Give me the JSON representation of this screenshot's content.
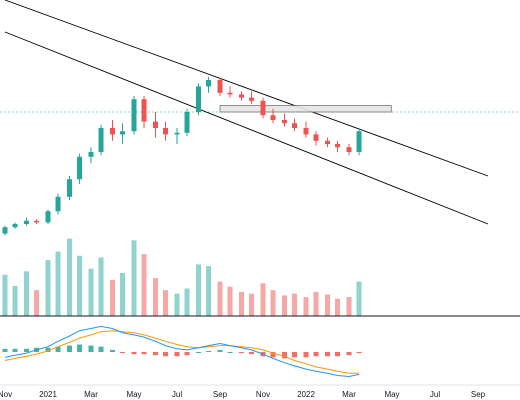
{
  "chart_data": {
    "type": "candlestick",
    "x_axis": {
      "tick_labels": [
        "Nov",
        "2021",
        "Mar",
        "May",
        "Jul",
        "Sep",
        "Nov",
        "2022",
        "Mar",
        "May",
        "Jul",
        "Sep"
      ],
      "tick_months": [
        "2020-11",
        "2021-01",
        "2021-03",
        "2021-05",
        "2021-07",
        "2021-09",
        "2021-11",
        "2022-01",
        "2022-03",
        "2022-05",
        "2022-07",
        "2022-09"
      ]
    },
    "price_panel": {
      "series": [
        {
          "date": "2020-11-01",
          "open": 4,
          "high": 9,
          "low": 3,
          "close": 8
        },
        {
          "date": "2020-11-15",
          "open": 8,
          "high": 11,
          "low": 7,
          "close": 10
        },
        {
          "date": "2020-12-01",
          "open": 10,
          "high": 14,
          "low": 9,
          "close": 12
        },
        {
          "date": "2020-12-15",
          "open": 12,
          "high": 13,
          "low": 10,
          "close": 11
        },
        {
          "date": "2021-01-01",
          "open": 11,
          "high": 19,
          "low": 10,
          "close": 18
        },
        {
          "date": "2021-01-15",
          "open": 18,
          "high": 29,
          "low": 16,
          "close": 27
        },
        {
          "date": "2021-02-01",
          "open": 27,
          "high": 40,
          "low": 25,
          "close": 38
        },
        {
          "date": "2021-02-15",
          "open": 38,
          "high": 54,
          "low": 35,
          "close": 52
        },
        {
          "date": "2021-03-01",
          "open": 52,
          "high": 58,
          "low": 48,
          "close": 55
        },
        {
          "date": "2021-03-15",
          "open": 55,
          "high": 72,
          "low": 53,
          "close": 70
        },
        {
          "date": "2021-04-01",
          "open": 70,
          "high": 75,
          "low": 62,
          "close": 66
        },
        {
          "date": "2021-04-15",
          "open": 66,
          "high": 73,
          "low": 60,
          "close": 68
        },
        {
          "date": "2021-05-01",
          "open": 68,
          "high": 90,
          "low": 66,
          "close": 88
        },
        {
          "date": "2021-05-15",
          "open": 88,
          "high": 90,
          "low": 70,
          "close": 74
        },
        {
          "date": "2021-06-01",
          "open": 74,
          "high": 80,
          "low": 64,
          "close": 70
        },
        {
          "date": "2021-06-15",
          "open": 70,
          "high": 74,
          "low": 62,
          "close": 66
        },
        {
          "date": "2021-07-01",
          "open": 66,
          "high": 70,
          "low": 60,
          "close": 67
        },
        {
          "date": "2021-07-15",
          "open": 67,
          "high": 82,
          "low": 65,
          "close": 80
        },
        {
          "date": "2021-08-01",
          "open": 80,
          "high": 98,
          "low": 78,
          "close": 96
        },
        {
          "date": "2021-08-15",
          "open": 96,
          "high": 102,
          "low": 92,
          "close": 100
        },
        {
          "date": "2021-09-01",
          "open": 100,
          "high": 101,
          "low": 90,
          "close": 92
        },
        {
          "date": "2021-09-15",
          "open": 92,
          "high": 96,
          "low": 89,
          "close": 91
        },
        {
          "date": "2021-10-01",
          "open": 91,
          "high": 93,
          "low": 87,
          "close": 89
        },
        {
          "date": "2021-10-15",
          "open": 89,
          "high": 93,
          "low": 85,
          "close": 87
        },
        {
          "date": "2021-11-01",
          "open": 87,
          "high": 89,
          "low": 76,
          "close": 78
        },
        {
          "date": "2021-11-15",
          "open": 78,
          "high": 82,
          "low": 73,
          "close": 75
        },
        {
          "date": "2021-12-01",
          "open": 75,
          "high": 79,
          "low": 71,
          "close": 73
        },
        {
          "date": "2021-12-15",
          "open": 73,
          "high": 76,
          "low": 68,
          "close": 70
        },
        {
          "date": "2022-01-01",
          "open": 70,
          "high": 74,
          "low": 64,
          "close": 66
        },
        {
          "date": "2022-01-15",
          "open": 66,
          "high": 68,
          "low": 59,
          "close": 62
        },
        {
          "date": "2022-02-01",
          "open": 62,
          "high": 64,
          "low": 58,
          "close": 60
        },
        {
          "date": "2022-02-15",
          "open": 60,
          "high": 62,
          "low": 55,
          "close": 58
        },
        {
          "date": "2022-03-01",
          "open": 58,
          "high": 60,
          "low": 53,
          "close": 55
        },
        {
          "date": "2022-03-15",
          "open": 55,
          "high": 70,
          "low": 53,
          "close": 68
        }
      ],
      "annotations": [
        {
          "type": "trendline",
          "from": {
            "date": "2020-11-01",
            "value": 150
          },
          "to": {
            "date": "2022-09-15",
            "value": 40
          }
        },
        {
          "type": "trendline",
          "from": {
            "date": "2020-11-01",
            "value": 130
          },
          "to": {
            "date": "2022-09-15",
            "value": 10
          }
        },
        {
          "type": "horizontal_zone",
          "from_date": "2021-09-01",
          "to_date": "2022-04-30",
          "low": 80,
          "high": 84
        }
      ],
      "reference_line": 80
    },
    "volume_panel": {
      "values": [
        48,
        35,
        52,
        30,
        65,
        75,
        90,
        70,
        55,
        68,
        42,
        50,
        88,
        72,
        44,
        30,
        26,
        32,
        60,
        58,
        40,
        34,
        28,
        26,
        38,
        30,
        24,
        26,
        22,
        28,
        25,
        20,
        22,
        40
      ]
    },
    "macd_panel": {
      "macd": [
        -5,
        -3,
        -1,
        2,
        5,
        10,
        15,
        20,
        22,
        24,
        22,
        18,
        16,
        14,
        10,
        6,
        3,
        2,
        4,
        6,
        8,
        6,
        4,
        2,
        -2,
        -6,
        -10,
        -13,
        -16,
        -18,
        -20,
        -22,
        -23,
        -21
      ],
      "signal": [
        -8,
        -6,
        -4,
        -2,
        1,
        5,
        9,
        13,
        16,
        19,
        20,
        19,
        18,
        16,
        13,
        10,
        7,
        5,
        4,
        5,
        6,
        6,
        5,
        4,
        2,
        -1,
        -4,
        -8,
        -11,
        -14,
        -16,
        -18,
        -20,
        -20
      ],
      "histogram": [
        3,
        3,
        3,
        4,
        4,
        5,
        6,
        7,
        6,
        5,
        2,
        -1,
        -2,
        -2,
        -3,
        -4,
        -4,
        -3,
        0,
        1,
        2,
        0,
        -1,
        -2,
        -4,
        -5,
        -6,
        -5,
        -5,
        -4,
        -4,
        -4,
        -3,
        -1
      ]
    },
    "colors": {
      "up": "#26a69a",
      "down": "#ef5350",
      "volume_up": "#8fd3cc",
      "volume_down": "#f5a8a6",
      "trendline": "#000000",
      "zone_fill": "#e6e6e6",
      "zone_stroke": "#666666",
      "reference_line": "#26a69a",
      "macd_line": "#2196f3",
      "signal_line": "#ff9800",
      "grid": "#d9d9d9"
    }
  }
}
